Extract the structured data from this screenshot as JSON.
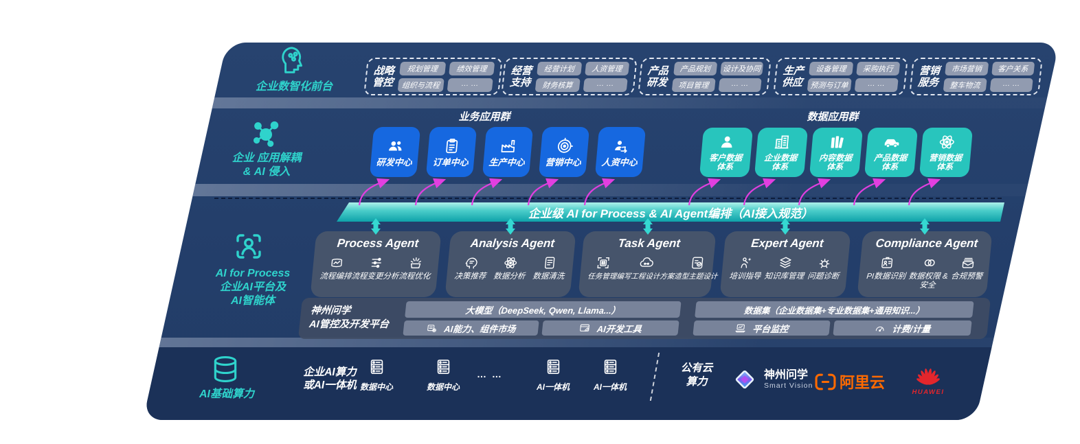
{
  "colors": {
    "panel_navy": "#233e6a",
    "infra_navy": "#1b3158",
    "accent_teal": "#2fd3cc",
    "box_blue": "#1668e0",
    "box_teal": "#28c5bd",
    "banner_teal": "#4bcdc9",
    "arrow_pink": "#e23fe0",
    "chip_gray": "#919bb0",
    "agent_slate": "#49556c",
    "alibaba_orange": "#ff6a00",
    "huawei_red": "#e4262c"
  },
  "front_office": {
    "section_label": "企业数智化前台",
    "icon": "brain-head",
    "groups": [
      {
        "t1": "战略",
        "t2": "管控",
        "chips": [
          "规划管理",
          "绩效管理",
          "组织与流程",
          "… …"
        ]
      },
      {
        "t1": "经营",
        "t2": "支持",
        "chips": [
          "经营计划",
          "人资管理",
          "财务核算",
          "… …"
        ]
      },
      {
        "t1": "产品",
        "t2": "研发",
        "chips": [
          "产品规划",
          "设计及协同",
          "项目管理",
          "… …"
        ]
      },
      {
        "t1": "生产",
        "t2": "供应",
        "chips": [
          "设备管理",
          "采购执行",
          "预测与订单",
          "… …"
        ]
      },
      {
        "t1": "营销",
        "t2": "服务",
        "chips": [
          "市场营销",
          "客户关系",
          "整车物流",
          "… …"
        ]
      }
    ]
  },
  "app_layer": {
    "section_label_1": "企业 应用解耦",
    "section_label_2": "& AI 侵入",
    "icon": "molecule",
    "business_title": "业务应用群",
    "business_apps": [
      {
        "label": "研发中心",
        "icon": "team"
      },
      {
        "label": "订单中心",
        "icon": "clipboard"
      },
      {
        "label": "生产中心",
        "icon": "factory"
      },
      {
        "label": "营销中心",
        "icon": "target"
      },
      {
        "label": "人资中心",
        "icon": "people-arrows"
      }
    ],
    "data_title": "数据应用群",
    "data_apps": [
      {
        "l1": "客户数据",
        "l2": "体系",
        "icon": "person"
      },
      {
        "l1": "企业数据",
        "l2": "体系",
        "icon": "building"
      },
      {
        "l1": "内容数据",
        "l2": "体系",
        "icon": "content"
      },
      {
        "l1": "产品数据",
        "l2": "体系",
        "icon": "car"
      },
      {
        "l1": "营销数据",
        "l2": "体系",
        "icon": "atom"
      }
    ]
  },
  "banner": {
    "text": "企业级 AI for Process & AI Agent编排（AI接入规范）"
  },
  "ai_layer": {
    "section_label_1": "AI for Process",
    "section_label_2": "企业AI平台及",
    "section_label_3": "AI智能体",
    "icon": "scan-person",
    "agents": [
      {
        "title": "Process Agent",
        "items": [
          {
            "label": "流程编排",
            "icon": "monitor-wave"
          },
          {
            "label": "流程变更分析",
            "icon": "flow-sliders"
          },
          {
            "label": "流程优化",
            "icon": "burst-box"
          }
        ]
      },
      {
        "title": "Analysis Agent",
        "items": [
          {
            "label": "决策推荐",
            "icon": "head-chat"
          },
          {
            "label": "数据分析",
            "icon": "atom"
          },
          {
            "label": "数据清洗",
            "icon": "doc-data"
          }
        ]
      },
      {
        "title": "Task Agent",
        "items": [
          {
            "label": "任务管理",
            "icon": "grid-scan"
          },
          {
            "label": "编写工程设计方案",
            "icon": "cloud-nodes"
          },
          {
            "label": "造型主题设计",
            "icon": "checklist-card"
          }
        ]
      },
      {
        "title": "Expert Agent",
        "items": [
          {
            "label": "培训指导",
            "icon": "training"
          },
          {
            "label": "知识库管理",
            "icon": "layers"
          },
          {
            "label": "问题诊断",
            "icon": "diagnose"
          }
        ]
      },
      {
        "title": "Compliance Agent",
        "items": [
          {
            "label": "PI数据识别",
            "icon": "id-badge"
          },
          {
            "label": "数据权限 & 安全",
            "icon": "link-rings"
          },
          {
            "label": "合规预警",
            "icon": "mail-alert"
          }
        ]
      }
    ],
    "platform": {
      "label_1": "神州问学",
      "label_2": "AI管控及开发平台",
      "model_bar": "大模型（DeepSeek, Qwen, Llama...）",
      "capability_bar": {
        "label": "AI能力、组件市场",
        "icon": "market"
      },
      "devtool_bar": {
        "label": "AI开发工具",
        "icon": "devtool"
      },
      "dataset_bar": "数据集（企业数据集+专业数据集+通用知识...）",
      "monitor_bar": {
        "label": "平台监控",
        "icon": "laptop-chart"
      },
      "billing_bar": {
        "label": "计费/计量",
        "icon": "gauge"
      }
    }
  },
  "infra": {
    "section_label": "AI基础算力",
    "icon": "database",
    "compute_label_1": "企业AI算力",
    "compute_label_2": "或AI一体机",
    "nodes": [
      {
        "label": "数据中心",
        "icon": "server"
      },
      {
        "label": "数据中心",
        "icon": "server"
      },
      {
        "label": "… …",
        "icon": ""
      },
      {
        "label": "AI一体机",
        "icon": "server"
      },
      {
        "label": "AI一体机",
        "icon": "server"
      }
    ],
    "cloud_label_1": "公有云",
    "cloud_label_2": "算力",
    "logos": {
      "sv_icon": "sv-diamond",
      "sv_name": "神州问学",
      "sv_sub": "Smart Vision",
      "ali_icon": "ali-bracket",
      "ali": "阿里云",
      "hw_icon": "huawei-flower",
      "huawei": "HUAWEI"
    }
  }
}
